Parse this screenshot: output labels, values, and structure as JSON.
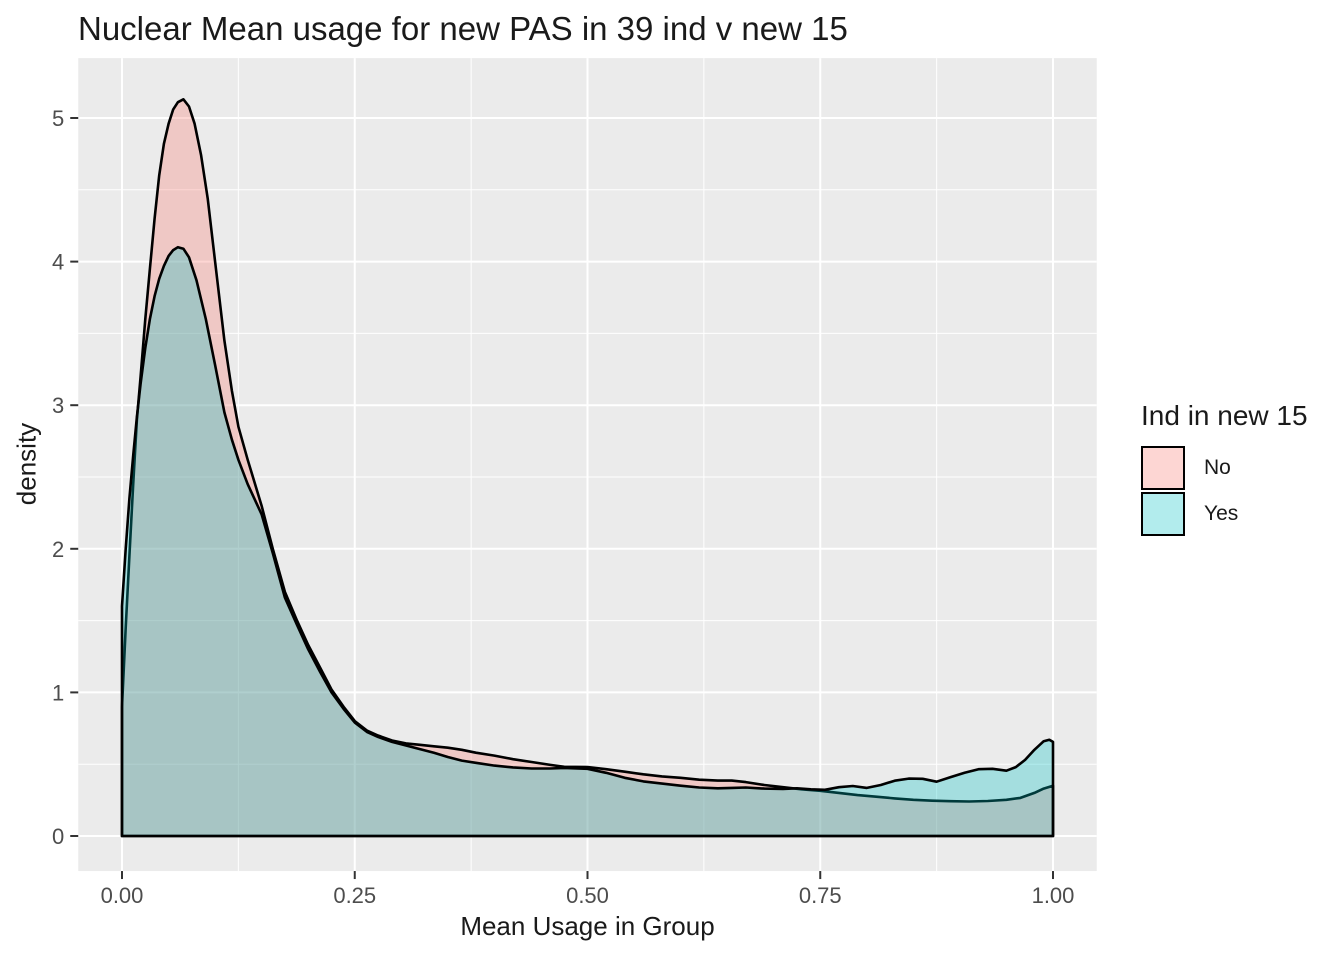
{
  "title": "Nuclear Mean usage for new PAS in 39 ind v new 15",
  "chart_data": {
    "type": "area",
    "subtype": "density",
    "title": "Nuclear Mean usage for new PAS in 39 ind v new 15",
    "xlabel": "Mean Usage in Group",
    "ylabel": "density",
    "xlim": [
      -0.047,
      1.047
    ],
    "ylim": [
      -0.244,
      5.417
    ],
    "x_ticks": [
      0,
      0.25,
      0.5,
      0.75,
      1.0
    ],
    "x_tick_labels": [
      "0.00",
      "0.25",
      "0.50",
      "0.75",
      "1.00"
    ],
    "x_minor_ticks": [
      0.125,
      0.375,
      0.625,
      0.875
    ],
    "y_ticks": [
      0,
      1,
      2,
      3,
      4,
      5
    ],
    "y_tick_labels": [
      "0",
      "1",
      "2",
      "3",
      "4",
      "5"
    ],
    "y_minor_ticks": [
      0.5,
      1.5,
      2.5,
      3.5,
      4.5
    ],
    "grid": true,
    "fill_alpha": 0.3,
    "legend": {
      "title": "Ind in new 15",
      "position": "right",
      "entries": [
        {
          "label": "No",
          "color": "#F8766D"
        },
        {
          "label": "Yes",
          "color": "#00BFC4"
        }
      ]
    },
    "series": [
      {
        "name": "No",
        "color": "#F8766D",
        "points": [
          [
            0.0,
            0.9
          ],
          [
            0.004,
            1.45
          ],
          [
            0.008,
            1.95
          ],
          [
            0.012,
            2.45
          ],
          [
            0.016,
            2.9
          ],
          [
            0.02,
            3.2
          ],
          [
            0.025,
            3.6
          ],
          [
            0.03,
            3.95
          ],
          [
            0.035,
            4.3
          ],
          [
            0.04,
            4.6
          ],
          [
            0.045,
            4.82
          ],
          [
            0.05,
            4.96
          ],
          [
            0.055,
            5.06
          ],
          [
            0.06,
            5.11
          ],
          [
            0.066,
            5.13
          ],
          [
            0.072,
            5.08
          ],
          [
            0.078,
            4.96
          ],
          [
            0.085,
            4.74
          ],
          [
            0.092,
            4.44
          ],
          [
            0.1,
            4.0
          ],
          [
            0.11,
            3.45
          ],
          [
            0.118,
            3.1
          ],
          [
            0.125,
            2.85
          ],
          [
            0.135,
            2.62
          ],
          [
            0.15,
            2.3
          ],
          [
            0.162,
            2.0
          ],
          [
            0.175,
            1.7
          ],
          [
            0.188,
            1.5
          ],
          [
            0.2,
            1.33
          ],
          [
            0.213,
            1.17
          ],
          [
            0.225,
            1.02
          ],
          [
            0.238,
            0.9
          ],
          [
            0.25,
            0.8
          ],
          [
            0.263,
            0.735
          ],
          [
            0.275,
            0.7
          ],
          [
            0.29,
            0.665
          ],
          [
            0.305,
            0.645
          ],
          [
            0.32,
            0.635
          ],
          [
            0.335,
            0.625
          ],
          [
            0.35,
            0.615
          ],
          [
            0.365,
            0.6
          ],
          [
            0.38,
            0.58
          ],
          [
            0.4,
            0.56
          ],
          [
            0.42,
            0.535
          ],
          [
            0.44,
            0.515
          ],
          [
            0.46,
            0.495
          ],
          [
            0.475,
            0.482
          ],
          [
            0.5,
            0.48
          ],
          [
            0.52,
            0.465
          ],
          [
            0.54,
            0.448
          ],
          [
            0.56,
            0.43
          ],
          [
            0.58,
            0.415
          ],
          [
            0.6,
            0.405
          ],
          [
            0.62,
            0.392
          ],
          [
            0.64,
            0.386
          ],
          [
            0.655,
            0.386
          ],
          [
            0.67,
            0.375
          ],
          [
            0.69,
            0.355
          ],
          [
            0.71,
            0.34
          ],
          [
            0.73,
            0.325
          ],
          [
            0.75,
            0.315
          ],
          [
            0.77,
            0.3
          ],
          [
            0.79,
            0.285
          ],
          [
            0.81,
            0.274
          ],
          [
            0.83,
            0.262
          ],
          [
            0.85,
            0.252
          ],
          [
            0.87,
            0.246
          ],
          [
            0.89,
            0.242
          ],
          [
            0.91,
            0.24
          ],
          [
            0.93,
            0.244
          ],
          [
            0.95,
            0.252
          ],
          [
            0.965,
            0.265
          ],
          [
            0.98,
            0.3
          ],
          [
            0.99,
            0.33
          ],
          [
            1.0,
            0.35
          ]
        ]
      },
      {
        "name": "Yes",
        "color": "#00BFC4",
        "points": [
          [
            0.0,
            1.6
          ],
          [
            0.004,
            2.0
          ],
          [
            0.008,
            2.35
          ],
          [
            0.012,
            2.65
          ],
          [
            0.016,
            2.92
          ],
          [
            0.02,
            3.15
          ],
          [
            0.025,
            3.4
          ],
          [
            0.03,
            3.6
          ],
          [
            0.035,
            3.76
          ],
          [
            0.04,
            3.88
          ],
          [
            0.045,
            3.97
          ],
          [
            0.05,
            4.04
          ],
          [
            0.055,
            4.08
          ],
          [
            0.06,
            4.1
          ],
          [
            0.066,
            4.09
          ],
          [
            0.072,
            4.03
          ],
          [
            0.08,
            3.87
          ],
          [
            0.09,
            3.6
          ],
          [
            0.1,
            3.28
          ],
          [
            0.11,
            2.95
          ],
          [
            0.118,
            2.76
          ],
          [
            0.125,
            2.62
          ],
          [
            0.135,
            2.45
          ],
          [
            0.15,
            2.24
          ],
          [
            0.162,
            1.97
          ],
          [
            0.175,
            1.66
          ],
          [
            0.188,
            1.47
          ],
          [
            0.2,
            1.3
          ],
          [
            0.213,
            1.14
          ],
          [
            0.225,
            1.0
          ],
          [
            0.238,
            0.885
          ],
          [
            0.25,
            0.79
          ],
          [
            0.263,
            0.725
          ],
          [
            0.275,
            0.69
          ],
          [
            0.29,
            0.655
          ],
          [
            0.305,
            0.63
          ],
          [
            0.32,
            0.605
          ],
          [
            0.335,
            0.58
          ],
          [
            0.35,
            0.55
          ],
          [
            0.365,
            0.525
          ],
          [
            0.38,
            0.51
          ],
          [
            0.4,
            0.49
          ],
          [
            0.42,
            0.478
          ],
          [
            0.44,
            0.47
          ],
          [
            0.46,
            0.47
          ],
          [
            0.475,
            0.474
          ],
          [
            0.5,
            0.468
          ],
          [
            0.52,
            0.44
          ],
          [
            0.54,
            0.405
          ],
          [
            0.56,
            0.38
          ],
          [
            0.58,
            0.365
          ],
          [
            0.6,
            0.35
          ],
          [
            0.62,
            0.338
          ],
          [
            0.64,
            0.332
          ],
          [
            0.655,
            0.335
          ],
          [
            0.67,
            0.338
          ],
          [
            0.69,
            0.33
          ],
          [
            0.71,
            0.328
          ],
          [
            0.725,
            0.332
          ],
          [
            0.74,
            0.325
          ],
          [
            0.755,
            0.322
          ],
          [
            0.77,
            0.34
          ],
          [
            0.785,
            0.348
          ],
          [
            0.8,
            0.335
          ],
          [
            0.815,
            0.355
          ],
          [
            0.83,
            0.385
          ],
          [
            0.845,
            0.4
          ],
          [
            0.86,
            0.398
          ],
          [
            0.875,
            0.378
          ],
          [
            0.89,
            0.41
          ],
          [
            0.905,
            0.44
          ],
          [
            0.92,
            0.465
          ],
          [
            0.935,
            0.468
          ],
          [
            0.95,
            0.455
          ],
          [
            0.96,
            0.48
          ],
          [
            0.97,
            0.53
          ],
          [
            0.98,
            0.6
          ],
          [
            0.99,
            0.66
          ],
          [
            0.996,
            0.67
          ],
          [
            1.0,
            0.655
          ]
        ]
      }
    ],
    "colors": {
      "panel_bg": "#EBEBEB",
      "grid": "#FFFFFF",
      "outline": "#000000",
      "tick": "#333333",
      "tick_label": "#4D4D4D",
      "text": "#1A1A1A"
    }
  }
}
